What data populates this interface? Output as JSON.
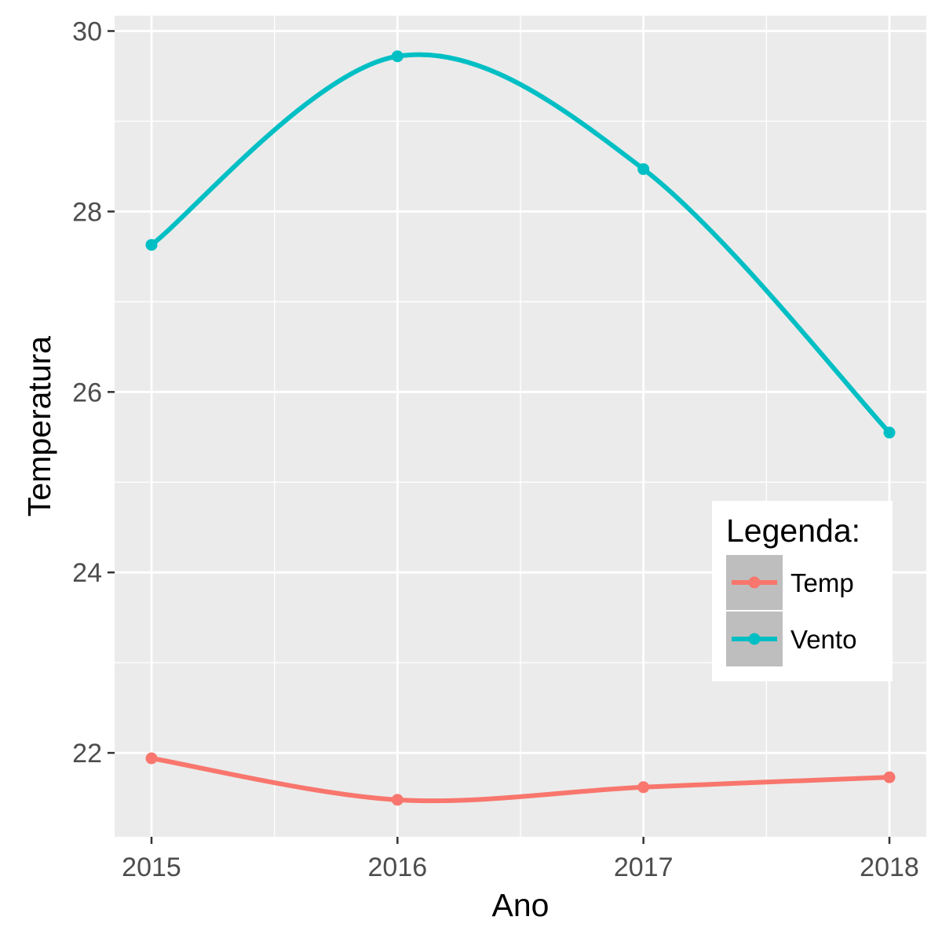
{
  "chart_data": {
    "type": "line",
    "xlabel": "Ano",
    "ylabel": "Temperatura",
    "x": [
      2015,
      2016,
      2017,
      2018
    ],
    "x_ticks": [
      "2015",
      "2016",
      "2017",
      "2018"
    ],
    "y_ticks": [
      "22",
      "24",
      "26",
      "28",
      "30"
    ],
    "xlim": [
      2014.85,
      2018.15
    ],
    "ylim": [
      21.07,
      30.17
    ],
    "grid": true,
    "smooth": true,
    "legend": {
      "title": "Legenda:",
      "placement": "inside-right"
    },
    "series": [
      {
        "name": "Temp",
        "color": "#F8766D",
        "values": [
          21.94,
          21.48,
          21.62,
          21.73
        ]
      },
      {
        "name": "Vento",
        "color": "#00BFC4",
        "values": [
          27.63,
          29.72,
          28.47,
          25.55
        ]
      }
    ],
    "colors": {
      "panel": "#EBEBEB",
      "grid": "#FFFFFF",
      "legend_key": "#BEBEBE"
    }
  }
}
